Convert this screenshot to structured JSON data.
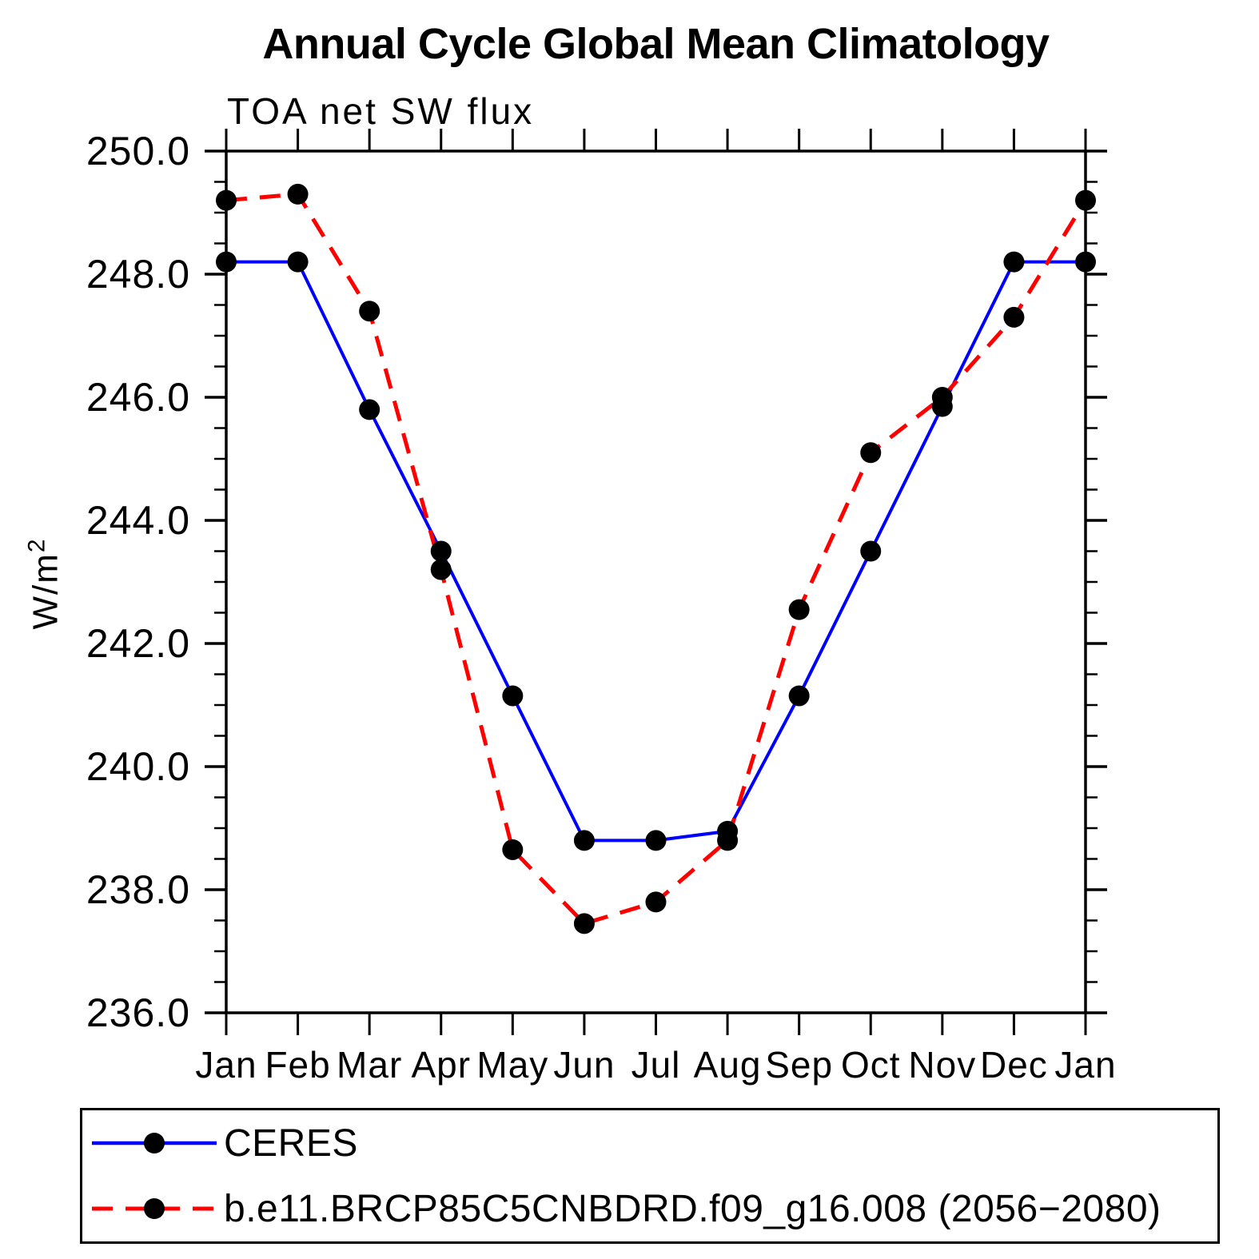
{
  "page": {
    "title": "Annual Cycle Global Mean Climatology",
    "subtitle": "TOA net SW flux"
  },
  "axes": {
    "ylabel_base": "W/m",
    "ylabel_sup": "2",
    "y_tick_labels": [
      "250.0",
      "248.0",
      "246.0",
      "244.0",
      "242.0",
      "240.0",
      "238.0",
      "236.0"
    ],
    "month_labels": [
      "Jan",
      "Feb",
      "Mar",
      "Apr",
      "May",
      "Jun",
      "Jul",
      "Aug",
      "Sep",
      "Oct",
      "Nov",
      "Dec",
      "Jan"
    ]
  },
  "chart_data": {
    "type": "line",
    "title": "Annual Cycle Global Mean Climatology",
    "subtitle": "TOA net SW flux",
    "ylabel": "W/m²",
    "xlabel": "",
    "ylim": [
      236.0,
      250.0
    ],
    "y_major_step": 2.0,
    "y_minor_step": 0.5,
    "grid": false,
    "legend_position": "bottom-box",
    "categories": [
      "Jan",
      "Feb",
      "Mar",
      "Apr",
      "May",
      "Jun",
      "Jul",
      "Aug",
      "Sep",
      "Oct",
      "Nov",
      "Dec",
      "Jan"
    ],
    "series": [
      {
        "name": "CERES",
        "color": "#0000ff",
        "line_style": "solid",
        "marker": "filled-circle",
        "marker_color": "#000000",
        "values": [
          248.2,
          248.2,
          245.8,
          243.5,
          241.15,
          238.8,
          238.8,
          238.95,
          241.15,
          243.5,
          245.85,
          248.2,
          248.2
        ]
      },
      {
        "name": "b.e11.BRCP85C5CNBDRD.f09_g16.008 (2056−2080)",
        "color": "#ff0000",
        "line_style": "dashed",
        "marker": "filled-circle",
        "marker_color": "#000000",
        "values": [
          249.2,
          249.3,
          247.4,
          243.2,
          238.65,
          237.45,
          237.8,
          238.8,
          242.55,
          245.1,
          246.0,
          247.3,
          249.2
        ]
      }
    ]
  }
}
